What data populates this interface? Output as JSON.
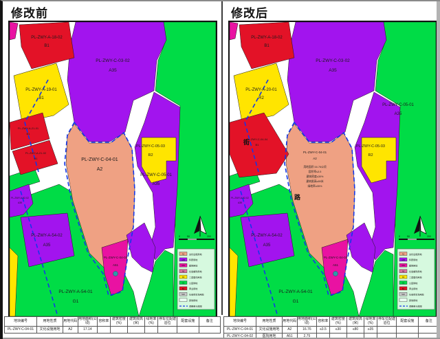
{
  "document": {
    "sheet_type": "规划调整对比图"
  },
  "colors": {
    "green": "#00DC46",
    "purple": "#A214EE",
    "red": "#E31227",
    "yellow": "#FFE500",
    "salmon": "#EFA183",
    "magenta": "#E912A2",
    "teal_dot": "#2E9AA8",
    "boundary_blue": "#1436E8",
    "legend_bg": "#D6F9DF",
    "pale": "#E8FBEF",
    "gray_chip": "#C9C9C9",
    "pink_chip": "#D56E9C"
  },
  "panels": [
    {
      "title": "修改前",
      "zones": {
        "a18": {
          "l1": "PL-ZWY-A-18-02",
          "l2": "B1"
        },
        "a19": {
          "l1": "PL-ZWY-A-19-01",
          "l2": "B1"
        },
        "c0302": {
          "l1": "PL-ZWY-C-03-02",
          "l2": "A35"
        },
        "a21a": {
          "l1": "PL-ZWY-A-21-01",
          "l2": "B1"
        },
        "a21b": {
          "l1": "PL-ZWY-A-21-02",
          "l2": "B1"
        },
        "a52": {
          "l1": "PL-ZWY-A-52-02",
          "l2": "A35"
        },
        "c0501": {
          "l1": "PL-ZWY-C-05-01",
          "l2": "A35"
        },
        "c0503": {
          "l1": "PL-ZWY-C-05-03",
          "l2": "R2"
        },
        "c0401": {
          "l1": "PL-ZWY-C-04-01",
          "l2": "A2"
        },
        "a5402": {
          "l1": "PL-ZWY-A-54-02",
          "l2": "A35"
        },
        "a5401": {
          "l1": "PL-ZWY-A-54-01",
          "l2": "G1"
        },
        "c0402": {
          "l1": "PL-ZWY-C-04-02",
          "l2": "A51"
        }
      },
      "notes": [],
      "street_chars": [],
      "table_rows": [
        [
          "PL-ZWY-C-04-01",
          "文化设施用地",
          "A2",
          "17.14",
          "",
          "",
          "",
          "",
          "",
          "",
          ""
        ]
      ]
    },
    {
      "title": "修改后",
      "zones": {
        "a18": {
          "l1": "PL-ZWY-A-18-02",
          "l2": "B1"
        },
        "a19": {
          "l1": "PL-ZWY-A-20-01",
          "l2": "R2"
        },
        "c0302": {
          "l1": "PL-ZWY-C-03-02",
          "l2": "A35"
        },
        "c0404": {
          "l1": "PL-ZWY-C-04-04",
          "l2": "B1"
        },
        "a52": {
          "l1": "PL-ZWY-A-52-02",
          "l2": "A35"
        },
        "c0501": {
          "l1": "PL-ZWY-C-05-01",
          "l2": "A35"
        },
        "c0503": {
          "l1": "PL-ZWY-C-05-03",
          "l2": "R2"
        },
        "c0401": {
          "l1": "PL-ZWY-C-04-01",
          "l2": "A2"
        },
        "a5402": {
          "l1": "PL-ZWY-A-54-02",
          "l2": "A35"
        },
        "a5401": {
          "l1": "PL-ZWY-A-54-01",
          "l2": "G1"
        },
        "c0402": {
          "l1": "PL-ZWY-C-04-02",
          "l2": "A51"
        }
      },
      "notes": [
        "用地面积:16.76公顷",
        "容积率≤3.5",
        "建筑密度≤30%",
        "建筑限高≤80米",
        "绿地率≥35%"
      ],
      "street_chars": [
        "街",
        "路"
      ],
      "table_rows": [
        [
          "PL-ZWY-C-04-01",
          "文化设施用地",
          "A2",
          "16.76",
          "≤3.5",
          "≤30",
          "≤80",
          "≥35",
          "",
          "",
          ""
        ],
        [
          "PL-ZWY-C-04-02",
          "医院用地",
          "A51",
          "2.75",
          "",
          "",
          "",
          "",
          "",
          "",
          ""
        ]
      ]
    }
  ],
  "table_headers": [
    "地块编号",
    "用地性质",
    "用地代码",
    "用地面积(公顷)",
    "容积率",
    "建筑密度(%)",
    "建筑限高(米)",
    "绿地率(%)",
    "停车位配建泊位",
    "配套设施",
    "备注"
  ],
  "legend": {
    "items": [
      {
        "code": "A2",
        "label": "文化设施用地",
        "color_key": "salmon"
      },
      {
        "code": "A35",
        "label": "科研用地",
        "color_key": "purple"
      },
      {
        "code": "A51",
        "label": "医院用地",
        "color_key": "magenta"
      },
      {
        "code": "A6",
        "label": "社会福利用地",
        "color_key": "pink_chip"
      },
      {
        "code": "R2",
        "label": "二类居住用地",
        "color_key": "yellow"
      },
      {
        "code": "G1",
        "label": "公园绿地",
        "color_key": "green"
      },
      {
        "code": "B1",
        "label": "商业用地",
        "color_key": "red"
      },
      {
        "code": "S42",
        "label": "社会停车场用地",
        "color_key": "gray_chip"
      },
      {
        "code": "",
        "label": "其他用地",
        "color_key": "pale"
      },
      {
        "code": "",
        "label": "调整单元范围",
        "color_key": "dash"
      }
    ]
  },
  "compass": {
    "scale_labels": [
      "0",
      "50",
      "200"
    ]
  }
}
